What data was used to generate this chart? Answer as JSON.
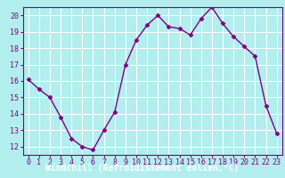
{
  "x": [
    0,
    1,
    2,
    3,
    4,
    5,
    6,
    7,
    8,
    9,
    10,
    11,
    12,
    13,
    14,
    15,
    16,
    17,
    18,
    19,
    20,
    21,
    22,
    23
  ],
  "y": [
    16.1,
    15.5,
    15.0,
    13.8,
    12.5,
    12.0,
    11.8,
    13.0,
    14.1,
    17.0,
    18.5,
    19.4,
    20.0,
    19.3,
    19.2,
    18.8,
    19.8,
    20.5,
    19.5,
    18.7,
    18.1,
    17.5,
    14.5,
    12.8
  ],
  "line_color": "#800080",
  "marker": "D",
  "marker_size": 2.5,
  "bg_color": "#b2eeee",
  "grid_color": "#ffffff",
  "xlabel": "Windchill (Refroidissement éolien,°C)",
  "xlabel_color": "#ffffff",
  "xlabel_bg": "#800080",
  "tick_color": "#800080",
  "xlim": [
    -0.5,
    23.5
  ],
  "ylim": [
    11.5,
    20.5
  ],
  "yticks": [
    12,
    13,
    14,
    15,
    16,
    17,
    18,
    19,
    20
  ],
  "xticks": [
    0,
    1,
    2,
    3,
    4,
    5,
    6,
    7,
    8,
    9,
    10,
    11,
    12,
    13,
    14,
    15,
    16,
    17,
    18,
    19,
    20,
    21,
    22,
    23
  ],
  "tick_label_fontsize": 6.0,
  "xlabel_fontsize": 7.0,
  "line_width": 1.0,
  "fig_width": 3.2,
  "fig_height": 2.0,
  "dpi": 100
}
